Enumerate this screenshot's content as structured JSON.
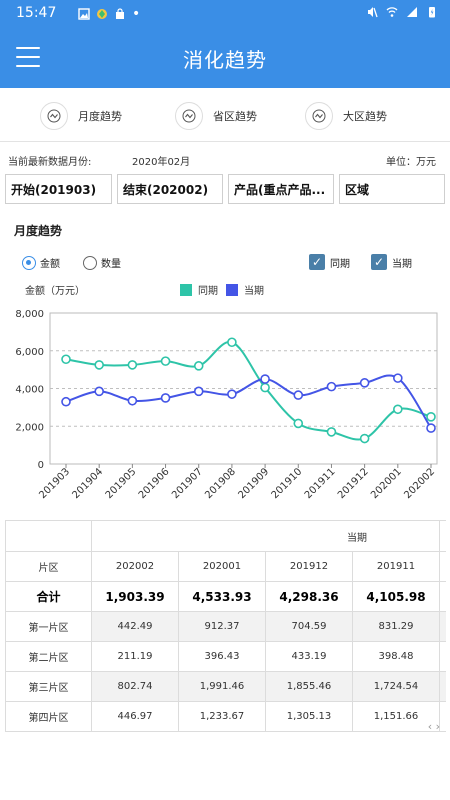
{
  "status_bar": {
    "time": "15:47",
    "dot": "•"
  },
  "app": {
    "title": "消化趋势"
  },
  "tabs": [
    {
      "label": "月度趋势",
      "icon": "trend-icon"
    },
    {
      "label": "省区趋势",
      "icon": "trend-icon"
    },
    {
      "label": "大区趋势",
      "icon": "trend-icon"
    }
  ],
  "meta": {
    "latest_label": "当前最新数据月份:",
    "latest_value": "2020年02月",
    "unit_label": "单位：万元"
  },
  "filters": {
    "start": "开始(201903)",
    "end": "结束(202002)",
    "product": "产品(重点产品...",
    "region": "区域"
  },
  "section": {
    "title": "月度趋势"
  },
  "options": {
    "amount": "金额",
    "quantity": "数量",
    "yoy": "同期",
    "current": "当期",
    "selected": "amount"
  },
  "colors": {
    "header": "#3a8ee6",
    "yoy": "#2ec4a8",
    "current": "#4455e6"
  },
  "chart_data": {
    "type": "line",
    "ylabel": "金额（万元）",
    "ylim": [
      0,
      8000
    ],
    "yticks": [
      "0",
      "2,000",
      "4,000",
      "6,000",
      "8,000"
    ],
    "categories": [
      "201903",
      "201904",
      "201905",
      "201906",
      "201907",
      "201908",
      "201909",
      "201910",
      "201911",
      "201912",
      "202001",
      "202002"
    ],
    "series": [
      {
        "name": "同期",
        "values": [
          5550,
          5250,
          5250,
          5450,
          5200,
          6450,
          4050,
          2150,
          1700,
          1350,
          2900,
          2500
        ]
      },
      {
        "name": "当期",
        "values": [
          3300,
          3850,
          3350,
          3500,
          3850,
          3700,
          4500,
          3650,
          4100,
          4300,
          4550,
          1903.39
        ]
      }
    ],
    "grid": "horizontal-dashed",
    "legend": "top-center"
  },
  "table": {
    "group_header": "当期",
    "row_header": "片区",
    "columns": [
      "202002",
      "202001",
      "201912",
      "201911"
    ],
    "rows": [
      {
        "name": "合计",
        "values": [
          "1,903.39",
          "4,533.93",
          "4,298.36",
          "4,105.98"
        ]
      },
      {
        "name": "第一片区",
        "values": [
          "442.49",
          "912.37",
          "704.59",
          "831.29"
        ]
      },
      {
        "name": "第二片区",
        "values": [
          "211.19",
          "396.43",
          "433.19",
          "398.48"
        ]
      },
      {
        "name": "第三片区",
        "values": [
          "802.74",
          "1,991.46",
          "1,855.46",
          "1,724.54"
        ]
      },
      {
        "name": "第四片区",
        "values": [
          "446.97",
          "1,233.67",
          "1,305.13",
          "1,151.66"
        ]
      }
    ]
  },
  "pager": {
    "arrows": "‹ ›"
  }
}
